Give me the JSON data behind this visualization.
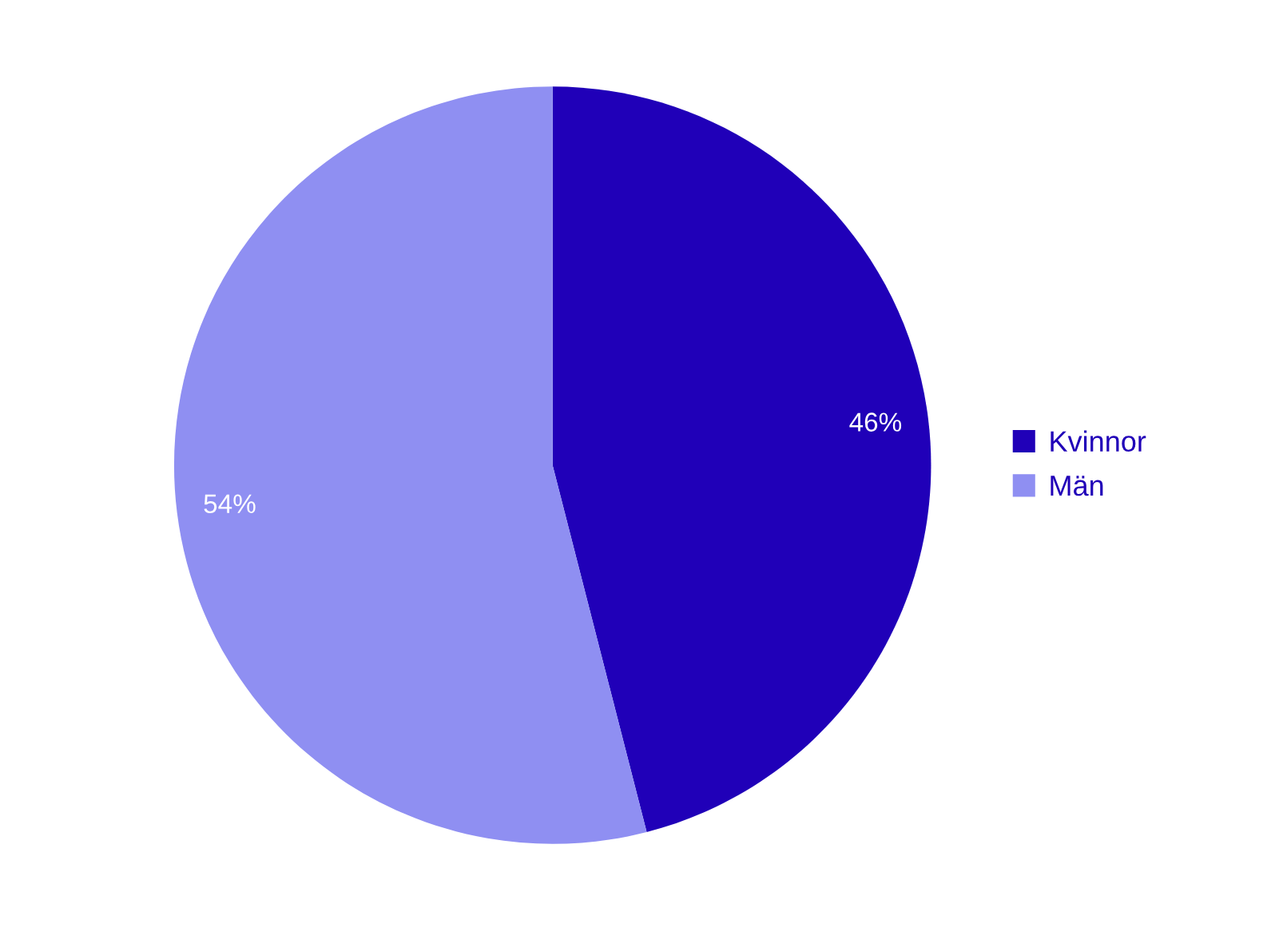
{
  "chart_data": {
    "type": "pie",
    "categories": [
      "Kvinnor",
      "Män"
    ],
    "values": [
      46,
      54
    ],
    "colors": [
      "#2000b8",
      "#8f8ff2"
    ],
    "value_labels": [
      "46%",
      "54%"
    ],
    "legend": "right"
  }
}
